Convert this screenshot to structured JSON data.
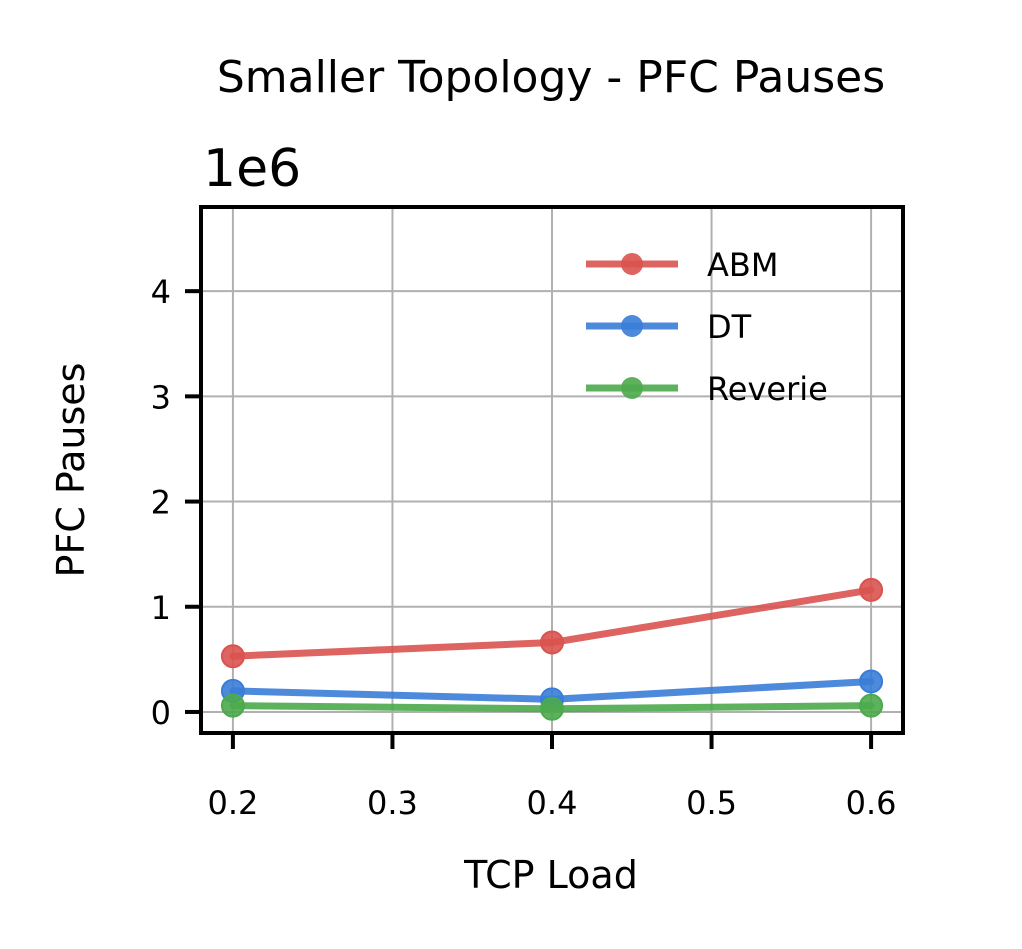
{
  "chart_data": {
    "type": "line",
    "title": "Smaller Topology - PFC Pauses",
    "xlabel": "TCP Load",
    "ylabel": "PFC Pauses",
    "y_scale_label": "1e6",
    "xlim": [
      0.18,
      0.62
    ],
    "ylim": [
      -0.2,
      4.8
    ],
    "x_ticks": [
      0.2,
      0.3,
      0.4,
      0.5,
      0.6
    ],
    "x_tick_labels": [
      "0.2",
      "0.3",
      "0.4",
      "0.5",
      "0.6"
    ],
    "y_ticks": [
      0,
      1,
      2,
      3,
      4
    ],
    "y_tick_labels": [
      "0",
      "1",
      "2",
      "3",
      "4"
    ],
    "grid": true,
    "legend_position": "top-right",
    "x": [
      0.2,
      0.4,
      0.6
    ],
    "series": [
      {
        "name": "ABM",
        "color": "#d9534f",
        "values": [
          0.53,
          0.66,
          1.16
        ]
      },
      {
        "name": "DT",
        "color": "#3a7dd8",
        "values": [
          0.2,
          0.12,
          0.29
        ]
      },
      {
        "name": "Reverie",
        "color": "#4caa4c",
        "values": [
          0.06,
          0.03,
          0.06
        ]
      }
    ]
  }
}
